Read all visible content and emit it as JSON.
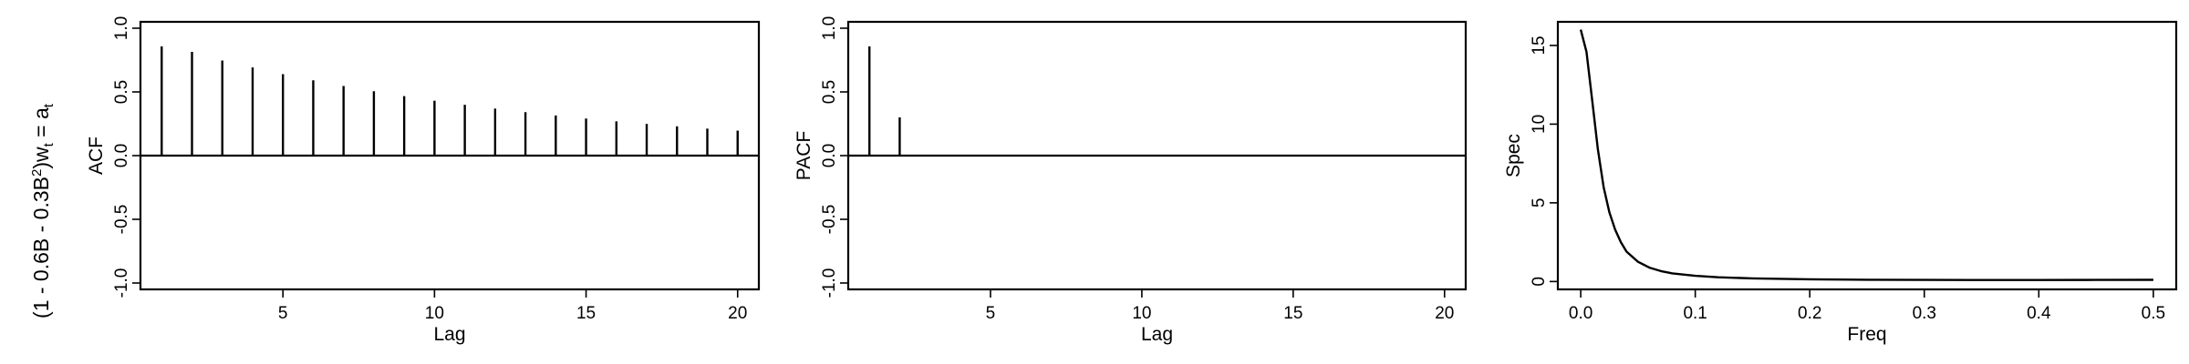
{
  "row_label": {
    "prefix": "(1 - 0.6B - 0.3B",
    "sup": "2",
    "mid": ")w",
    "sub1": "t",
    "eq": " = a",
    "sub2": "t"
  },
  "chart_data": [
    {
      "type": "bar",
      "subtype": "stem",
      "xlabel": "Lag",
      "ylabel": "ACF",
      "xlim": [
        0.3,
        20.7
      ],
      "ylim": [
        -1.05,
        1.05
      ],
      "xticks": [
        5,
        10,
        15,
        20
      ],
      "yticks": [
        -1.0,
        -0.5,
        0.0,
        0.5,
        1.0
      ],
      "ytick_labels": [
        "-1.0",
        "-0.5",
        "0.0",
        "0.5",
        "1.0"
      ],
      "baseline": 0,
      "x": [
        1,
        2,
        3,
        4,
        5,
        6,
        7,
        8,
        9,
        10,
        11,
        12,
        13,
        14,
        15,
        16,
        17,
        18,
        19,
        20
      ],
      "values": [
        0.857,
        0.814,
        0.746,
        0.692,
        0.639,
        0.591,
        0.546,
        0.505,
        0.467,
        0.431,
        0.399,
        0.369,
        0.341,
        0.315,
        0.291,
        0.269,
        0.249,
        0.23,
        0.212,
        0.196
      ]
    },
    {
      "type": "bar",
      "subtype": "stem",
      "xlabel": "Lag",
      "ylabel": "PACF",
      "xlim": [
        0.3,
        20.7
      ],
      "ylim": [
        -1.05,
        1.05
      ],
      "xticks": [
        5,
        10,
        15,
        20
      ],
      "yticks": [
        -1.0,
        -0.5,
        0.0,
        0.5,
        1.0
      ],
      "ytick_labels": [
        "-1.0",
        "-0.5",
        "0.0",
        "0.5",
        "1.0"
      ],
      "baseline": 0,
      "x": [
        1,
        2
      ],
      "values": [
        0.857,
        0.3
      ]
    },
    {
      "type": "line",
      "xlabel": "Freq",
      "ylabel": "Spec",
      "xlim": [
        -0.02,
        0.52
      ],
      "ylim": [
        -0.5,
        16.5
      ],
      "xticks": [
        0.0,
        0.1,
        0.2,
        0.3,
        0.4,
        0.5
      ],
      "xtick_labels": [
        "0.0",
        "0.1",
        "0.2",
        "0.3",
        "0.4",
        "0.5"
      ],
      "yticks": [
        0,
        5,
        10,
        15
      ],
      "ytick_labels": [
        "0",
        "5",
        "10",
        "15"
      ],
      "x": [
        0.0,
        0.005,
        0.01,
        0.015,
        0.02,
        0.025,
        0.03,
        0.035,
        0.04,
        0.05,
        0.06,
        0.07,
        0.08,
        0.1,
        0.12,
        0.15,
        0.2,
        0.25,
        0.3,
        0.35,
        0.4,
        0.45,
        0.5
      ],
      "y": [
        16.0,
        14.6,
        11.5,
        8.4,
        6.0,
        4.4,
        3.3,
        2.5,
        1.9,
        1.25,
        0.88,
        0.66,
        0.52,
        0.36,
        0.27,
        0.2,
        0.14,
        0.115,
        0.1,
        0.095,
        0.095,
        0.1,
        0.105
      ]
    }
  ]
}
